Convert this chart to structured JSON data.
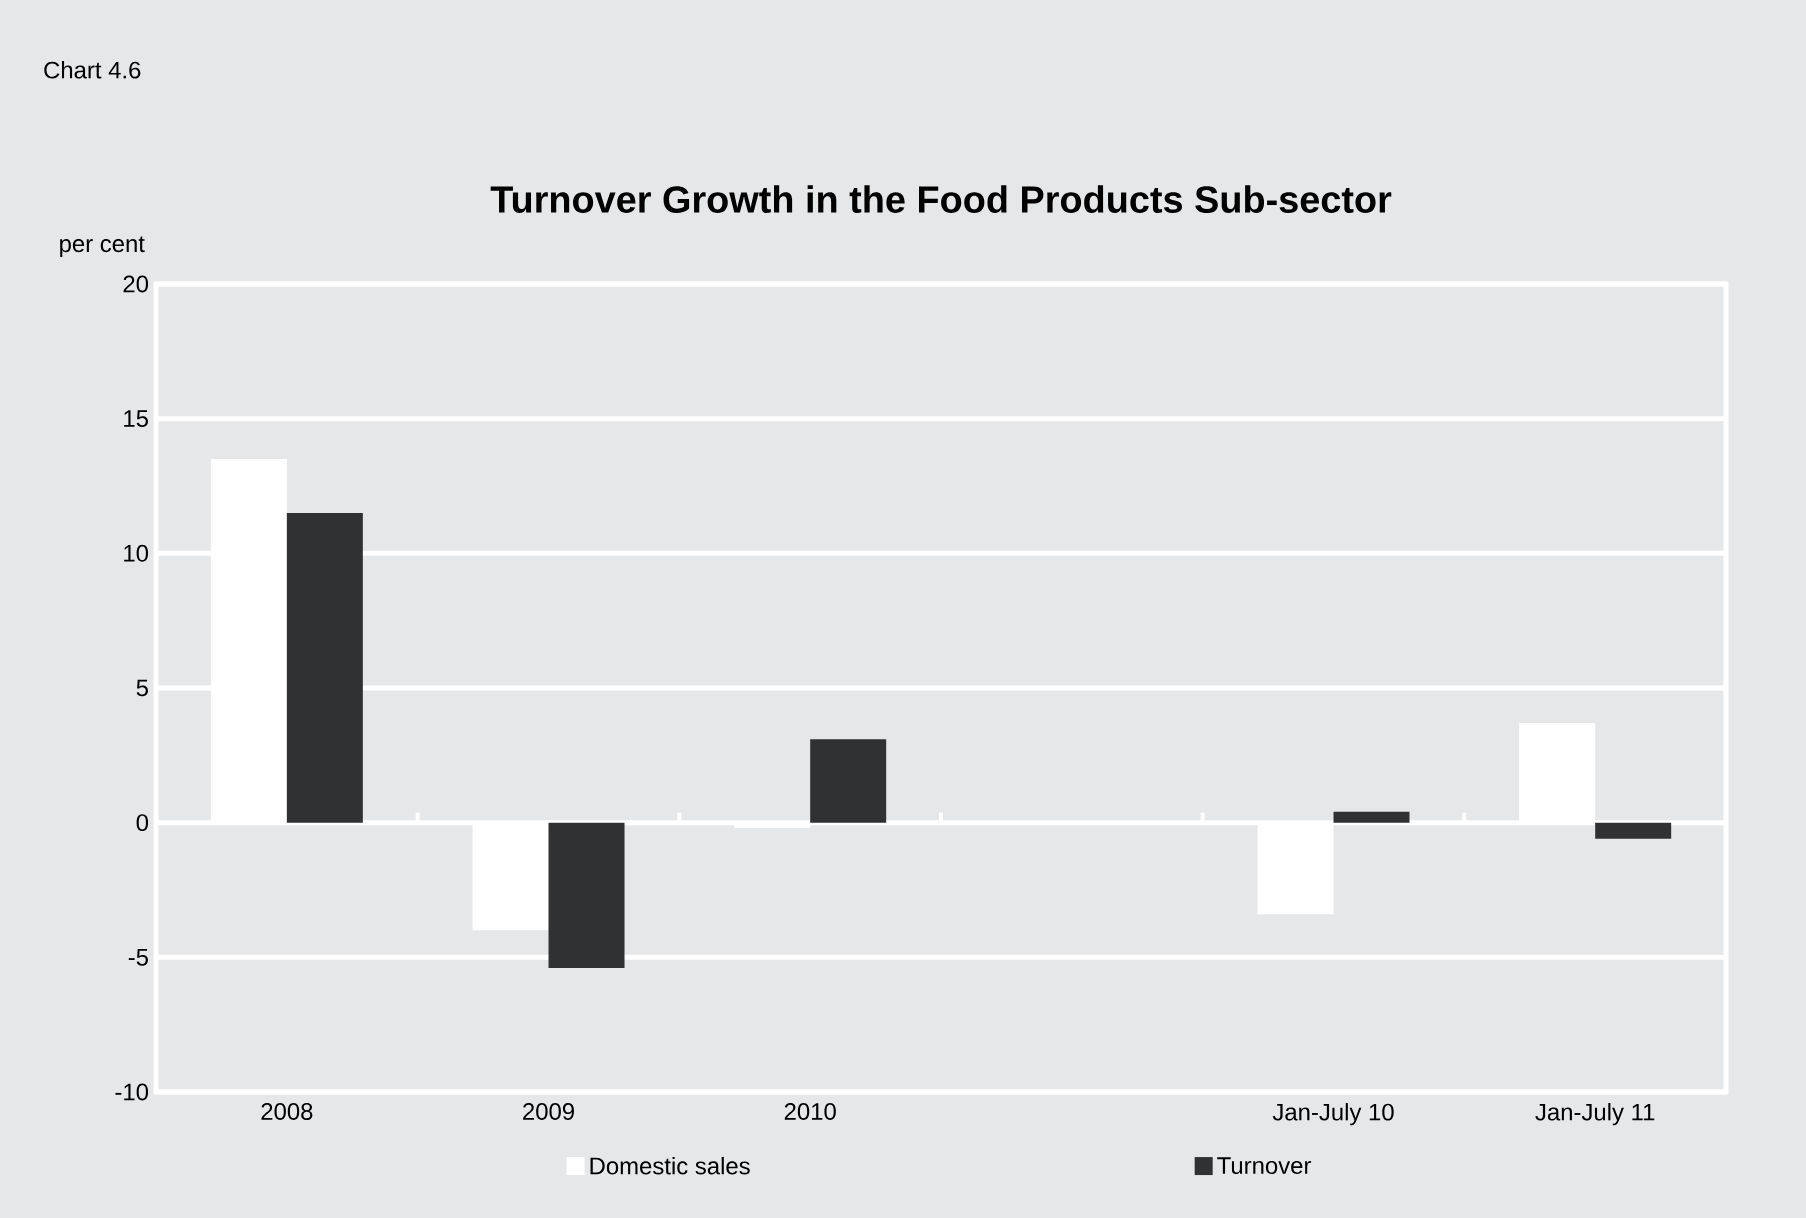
{
  "chart_data": {
    "type": "bar",
    "title": "Turnover Growth in the Food Products Sub-sector",
    "ylabel": "per cent",
    "annotations": [
      "Chart 4.6"
    ],
    "categories": [
      "2008",
      "2009",
      "2010",
      null,
      "Jan-July 10",
      "Jan-July 11"
    ],
    "series": [
      {
        "name": "Domestic sales",
        "color": "#ffffff",
        "values": [
          13.5,
          -4.0,
          -0.2,
          null,
          -3.4,
          3.7
        ]
      },
      {
        "name": "Turnover",
        "color": "#303133",
        "values": [
          11.5,
          -5.4,
          3.1,
          null,
          0.4,
          -0.6
        ]
      }
    ],
    "ylim": [
      -10,
      20
    ],
    "yticks": [
      -10,
      -5,
      0,
      5,
      10,
      15,
      20
    ],
    "grid": "y",
    "legend": "bottom"
  }
}
